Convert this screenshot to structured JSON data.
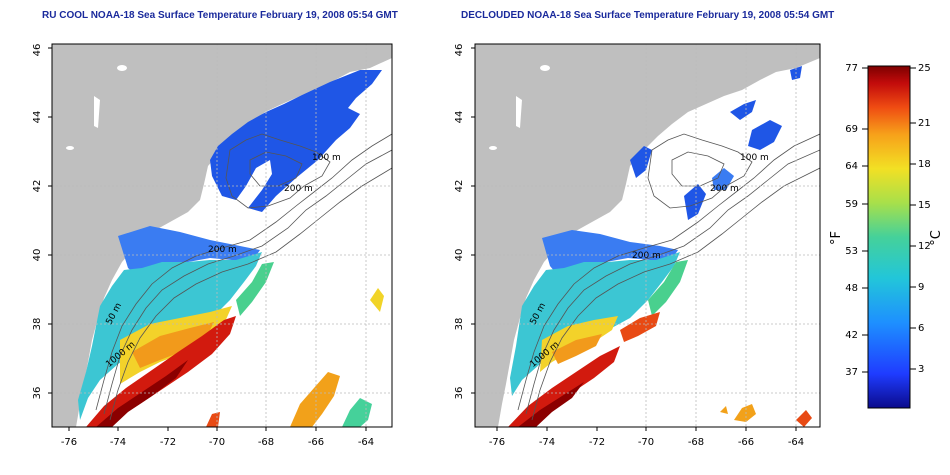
{
  "panels": [
    {
      "title": "RU COOL NOAA-18 Sea Surface Temperature February 19, 2008 05:54 GMT",
      "contour_labels": [
        "100 m",
        "200 m",
        "200 m",
        "50 m",
        "1000 m"
      ]
    },
    {
      "title": "DECLOUDED NOAA-18 Sea Surface Temperature February 19, 2008 05:54 GMT",
      "contour_labels": [
        "100 m",
        "200 m",
        "200 m",
        "50 m",
        "1000 m"
      ]
    }
  ],
  "axes": {
    "x_ticks": [
      "-76",
      "-74",
      "-72",
      "-70",
      "-68",
      "-66",
      "-64"
    ],
    "y_ticks": [
      "36",
      "38",
      "40",
      "42",
      "44",
      "46"
    ],
    "x_range": [
      -77,
      -63
    ],
    "y_range": [
      35,
      46
    ]
  },
  "colorbar": {
    "f_label": "°F",
    "c_label": "°C",
    "f_ticks": [
      "77",
      "69",
      "64",
      "59",
      "53",
      "48",
      "42",
      "37"
    ],
    "c_ticks": [
      "25",
      "21",
      "18",
      "15",
      "12",
      "9",
      "6",
      "3"
    ],
    "colors": [
      "#0b0b8c",
      "#1f3cff",
      "#1e90ff",
      "#22c6d9",
      "#45d19a",
      "#a8e04a",
      "#f2e024",
      "#f7a11a",
      "#ef4b12",
      "#c20b0b",
      "#7d0000"
    ]
  },
  "land_color": "#bfbfbf",
  "frame_color": "#000000"
}
